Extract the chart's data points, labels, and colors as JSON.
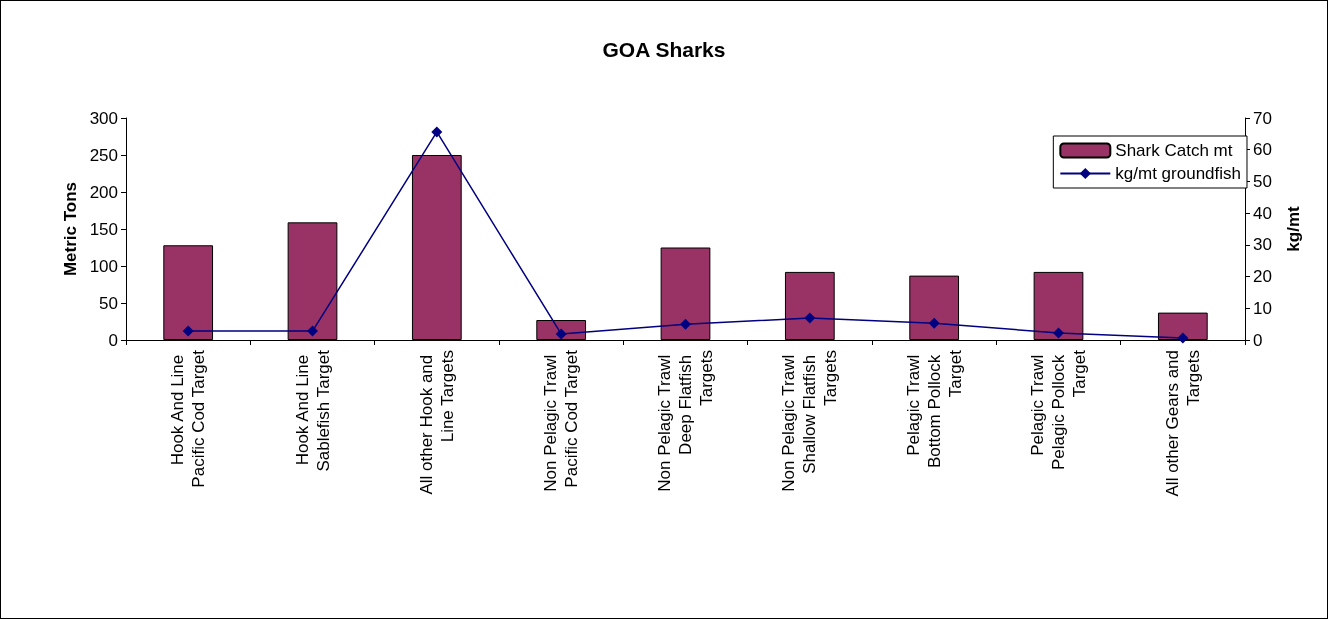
{
  "chart_data": {
    "type": "bar",
    "title": "GOA Sharks",
    "ylabel": "Metric Tons",
    "y2label": "kg/mt",
    "categories": [
      "Hook And Line Pacific Cod Target",
      "Hook And Line Sablefish Target",
      "All other Hook and Line Targets",
      "Non Pelagic Trawl Pacific Cod Target",
      "Non Pelagic Trawl Deep Flatfish Targets",
      "Non Pelagic Trawl Shallow Flatfish Targets",
      "Pelagic Trawl Bottom Pollock Target",
      "Pelagic Trawl Pelagic Pollock Target",
      "All other Gears and Targets"
    ],
    "series": [
      {
        "name": "Shark Catch mt",
        "color": "#993366",
        "values": [
          128,
          159,
          250,
          27,
          125,
          92,
          87,
          92,
          37
        ]
      },
      {
        "name": "kg/mt groundfish",
        "type": "line",
        "axis": "y2",
        "color": "#000080",
        "marker": "diamond",
        "values": [
          2.8,
          2.8,
          65.6,
          1.9,
          5,
          6.9,
          5.3,
          2.2,
          0.6
        ]
      }
    ],
    "ylim": [
      0,
      300
    ],
    "yticks": [
      0,
      50,
      100,
      150,
      200,
      250,
      300
    ],
    "y2lim": [
      0,
      70
    ],
    "y2ticks": [
      0,
      10,
      20,
      30,
      40,
      50,
      60,
      70
    ],
    "grid": false,
    "legend": "top right"
  }
}
